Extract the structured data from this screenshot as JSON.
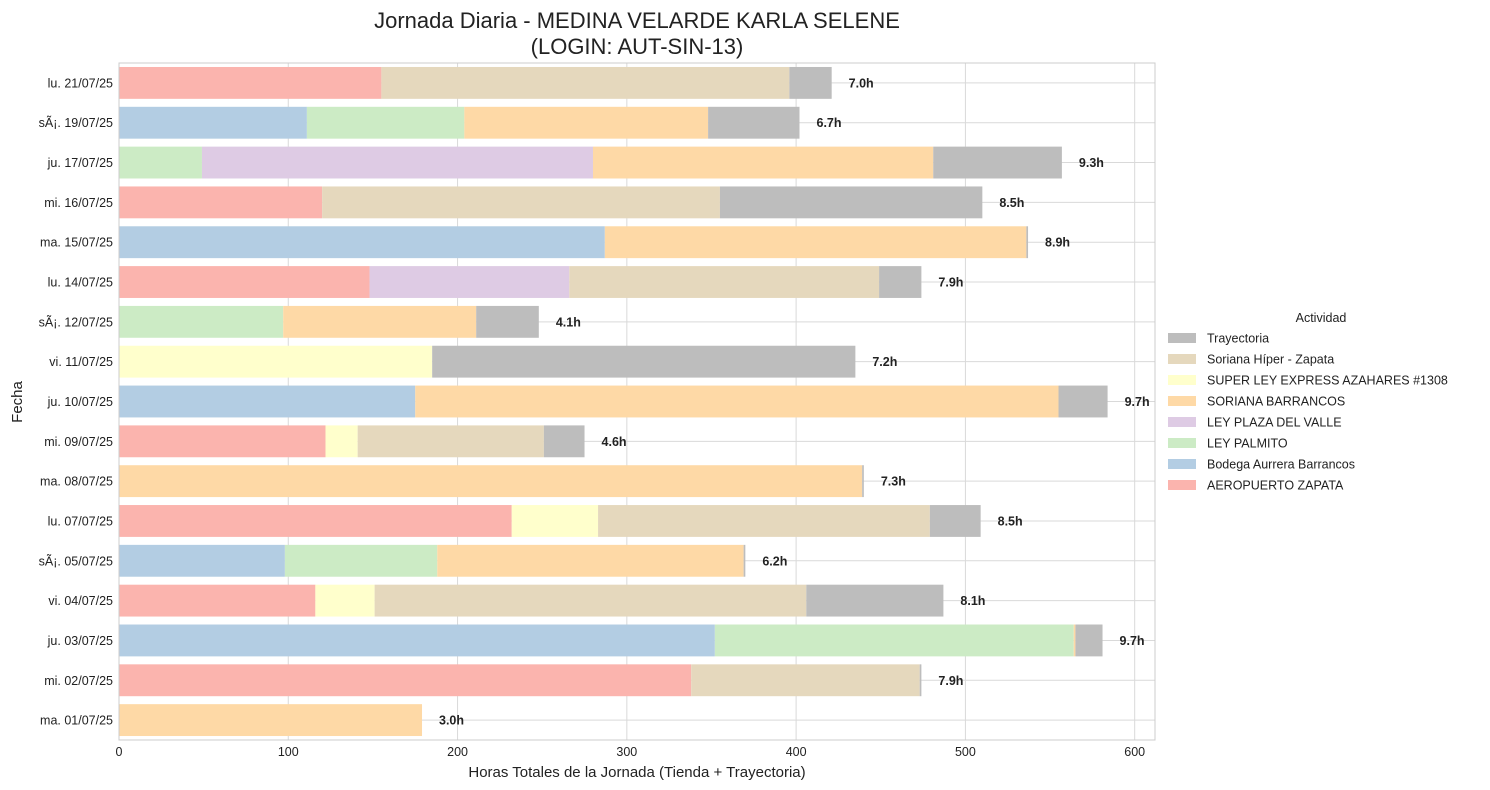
{
  "chart_data": {
    "type": "bar",
    "orientation": "horizontal",
    "stacked": true,
    "title_line1": "Jornada Diaria - MEDINA VELARDE KARLA SELENE",
    "title_line2": "(LOGIN: AUT-SIN-13)",
    "xlabel": "Horas Totales de la Jornada (Tienda + Trayectoria)",
    "ylabel": "Fecha",
    "xlim": [
      0,
      612
    ],
    "xticks": [
      0,
      100,
      200,
      300,
      400,
      500,
      600
    ],
    "grid": true,
    "legend_position": "right",
    "legend_title": "Actividad",
    "categories": [
      "lu. 21/07/25",
      "sÃ¡. 19/07/25",
      "ju. 17/07/25",
      "mi. 16/07/25",
      "ma. 15/07/25",
      "lu. 14/07/25",
      "sÃ¡. 12/07/25",
      "vi. 11/07/25",
      "ju. 10/07/25",
      "mi. 09/07/25",
      "ma. 08/07/25",
      "lu. 07/07/25",
      "sÃ¡. 05/07/25",
      "vi. 04/07/25",
      "ju. 03/07/25",
      "mi. 02/07/25",
      "ma. 01/07/25"
    ],
    "totals": [
      "7.0h",
      "6.7h",
      "9.3h",
      "8.5h",
      "8.9h",
      "7.9h",
      "4.1h",
      "7.2h",
      "9.7h",
      "4.6h",
      "7.3h",
      "8.5h",
      "6.2h",
      "8.1h",
      "9.7h",
      "7.9h",
      "3.0h"
    ],
    "series": [
      {
        "name": "AEROPUERTO ZAPATA",
        "color": "#fbb4ae",
        "values": [
          155,
          0,
          0,
          120,
          0,
          148,
          0,
          0,
          0,
          122,
          0,
          232,
          0,
          116,
          0,
          338,
          0
        ]
      },
      {
        "name": "Bodega Aurrera Barrancos",
        "color": "#b3cde3",
        "values": [
          0,
          111,
          0,
          0,
          287,
          0,
          0,
          0,
          175,
          0,
          0,
          0,
          98,
          0,
          352,
          0,
          0
        ]
      },
      {
        "name": "LEY PALMITO",
        "color": "#ccebc5",
        "values": [
          0,
          93,
          49,
          0,
          0,
          0,
          97,
          0,
          0,
          0,
          0,
          0,
          90,
          0,
          212,
          0,
          0
        ]
      },
      {
        "name": "LEY PLAZA DEL VALLE",
        "color": "#decbe4",
        "values": [
          0,
          0,
          231,
          0,
          0,
          118,
          0,
          0,
          0,
          0,
          0,
          0,
          0,
          0,
          0,
          0,
          0
        ]
      },
      {
        "name": "SORIANA BARRANCOS",
        "color": "#fed9a6",
        "values": [
          0,
          144,
          201,
          0,
          249,
          0,
          114,
          0,
          380,
          0,
          439,
          0,
          181,
          0,
          1,
          0,
          179
        ]
      },
      {
        "name": "SUPER LEY EXPRESS AZAHARES #1308",
        "color": "#ffffcc",
        "values": [
          0,
          0,
          0,
          0,
          0,
          0,
          0,
          185,
          0,
          19,
          0,
          51,
          0,
          35,
          0,
          0,
          0
        ]
      },
      {
        "name": "Soriana Híper - Zapata",
        "color": "#e5d8bd",
        "values": [
          241,
          0,
          0,
          235,
          0,
          183,
          0,
          0,
          0,
          110,
          0,
          196,
          0,
          255,
          0,
          135,
          0
        ]
      },
      {
        "name": "Trayectoria",
        "color": "#bdbdbd",
        "values": [
          25,
          54,
          76,
          155,
          1,
          25,
          37,
          250,
          29,
          24,
          1,
          30,
          1,
          81,
          16,
          1,
          0
        ]
      }
    ],
    "legend_order": [
      "Trayectoria",
      "Soriana Híper - Zapata",
      "SUPER LEY EXPRESS AZAHARES #1308",
      "SORIANA BARRANCOS",
      "LEY PLAZA DEL VALLE",
      "LEY PALMITO",
      "Bodega Aurrera Barrancos",
      "AEROPUERTO ZAPATA"
    ]
  }
}
